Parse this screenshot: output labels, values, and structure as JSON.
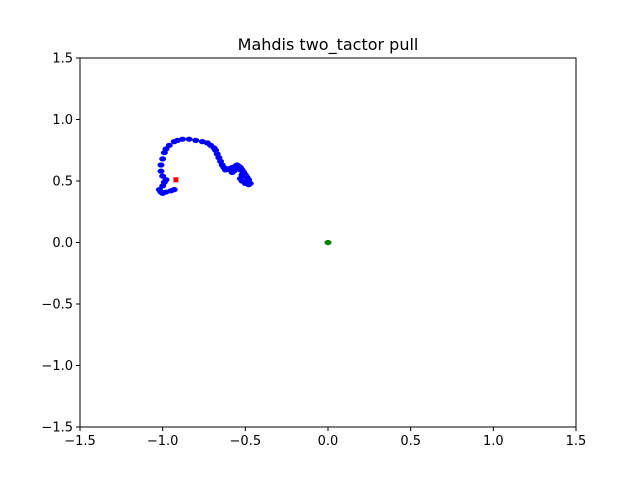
{
  "chart_data": {
    "type": "scatter",
    "title": "Mahdis two_tactor pull",
    "xlabel": "",
    "ylabel": "",
    "xlim": [
      -1.5,
      1.5
    ],
    "ylim": [
      -1.5,
      1.5
    ],
    "xticks": [
      -1.5,
      -1.0,
      -0.5,
      0.0,
      0.5,
      1.0,
      1.5
    ],
    "yticks": [
      -1.5,
      -1.0,
      -0.5,
      0.0,
      0.5,
      1.0,
      1.5
    ],
    "xtick_labels": [
      "−1.5",
      "−1.0",
      "−0.5",
      "0.0",
      "0.5",
      "1.0",
      "1.5"
    ],
    "ytick_labels": [
      "−1.5",
      "−1.0",
      "−0.5",
      "0.0",
      "0.5",
      "1.0",
      "1.5"
    ],
    "grid": false,
    "series": [
      {
        "color": "#0000ff",
        "marker": "circle",
        "x": [
          -0.93,
          -0.95,
          -0.98,
          -1.0,
          -1.01,
          -1.02,
          -1.0,
          -0.99,
          -0.98,
          -1.0,
          -1.01,
          -1.01,
          -1.0,
          -0.99,
          -0.98,
          -0.96,
          -0.93,
          -0.91,
          -0.88,
          -0.84,
          -0.8,
          -0.76,
          -0.73,
          -0.71,
          -0.69,
          -0.68,
          -0.67,
          -0.66,
          -0.65,
          -0.64,
          -0.63,
          -0.62,
          -0.6,
          -0.58,
          -0.56,
          -0.55,
          -0.54,
          -0.53,
          -0.52,
          -0.51,
          -0.5,
          -0.49,
          -0.48,
          -0.47,
          -0.48,
          -0.5,
          -0.52,
          -0.53,
          -0.52,
          -0.51,
          -0.53,
          -0.55,
          -0.57,
          -0.58,
          -0.59
        ],
        "y": [
          0.43,
          0.42,
          0.41,
          0.4,
          0.41,
          0.43,
          0.46,
          0.49,
          0.51,
          0.54,
          0.58,
          0.63,
          0.68,
          0.73,
          0.76,
          0.79,
          0.82,
          0.83,
          0.84,
          0.84,
          0.83,
          0.82,
          0.81,
          0.79,
          0.77,
          0.75,
          0.72,
          0.69,
          0.66,
          0.63,
          0.61,
          0.59,
          0.6,
          0.61,
          0.62,
          0.63,
          0.62,
          0.61,
          0.59,
          0.57,
          0.55,
          0.53,
          0.51,
          0.48,
          0.47,
          0.48,
          0.5,
          0.52,
          0.55,
          0.57,
          0.59,
          0.6,
          0.58,
          0.57,
          0.59
        ]
      },
      {
        "color": "#ff0000",
        "marker": "square",
        "x": [
          -0.92
        ],
        "y": [
          0.51
        ]
      },
      {
        "color": "#008000",
        "marker": "circle",
        "x": [
          0.0
        ],
        "y": [
          0.0
        ]
      }
    ]
  }
}
